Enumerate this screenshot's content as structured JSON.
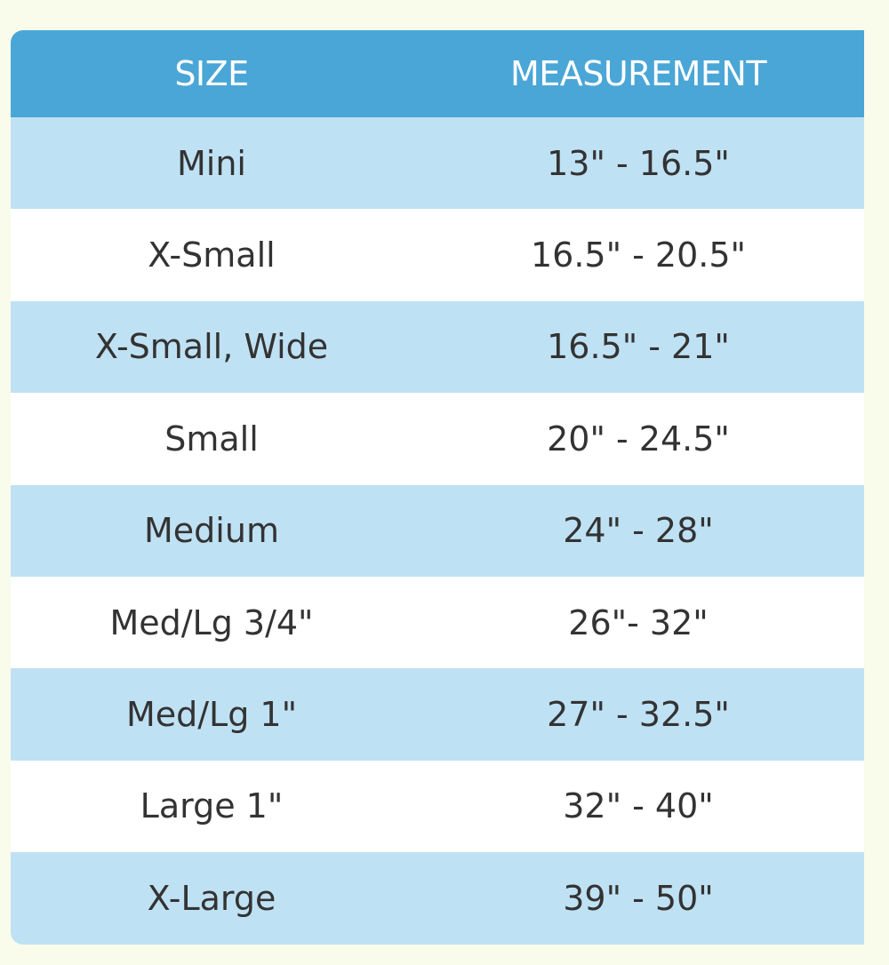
{
  "table": {
    "headers": [
      "SIZE",
      "MEASUREMENT"
    ],
    "rows": [
      {
        "size": "Mini",
        "measurement": "13\" - 16.5\""
      },
      {
        "size": "X-Small",
        "measurement": "16.5\" - 20.5\""
      },
      {
        "size": "X-Small, Wide",
        "measurement": "16.5\" - 21\""
      },
      {
        "size": "Small",
        "measurement": "20\" - 24.5\""
      },
      {
        "size": "Medium",
        "measurement": "24\" - 28\""
      },
      {
        "size": "Med/Lg 3/4\"",
        "measurement": "26\"- 32\""
      },
      {
        "size": "Med/Lg 1\"",
        "measurement": "27\" - 32.5\""
      },
      {
        "size": "Large 1\"",
        "measurement": "32\" - 40\""
      },
      {
        "size": "X-Large",
        "measurement": "39\" - 50\""
      }
    ],
    "colors": {
      "header": "#4aa6d6",
      "stripe": "#bfe1f4",
      "background": "#f9fbeb"
    }
  }
}
